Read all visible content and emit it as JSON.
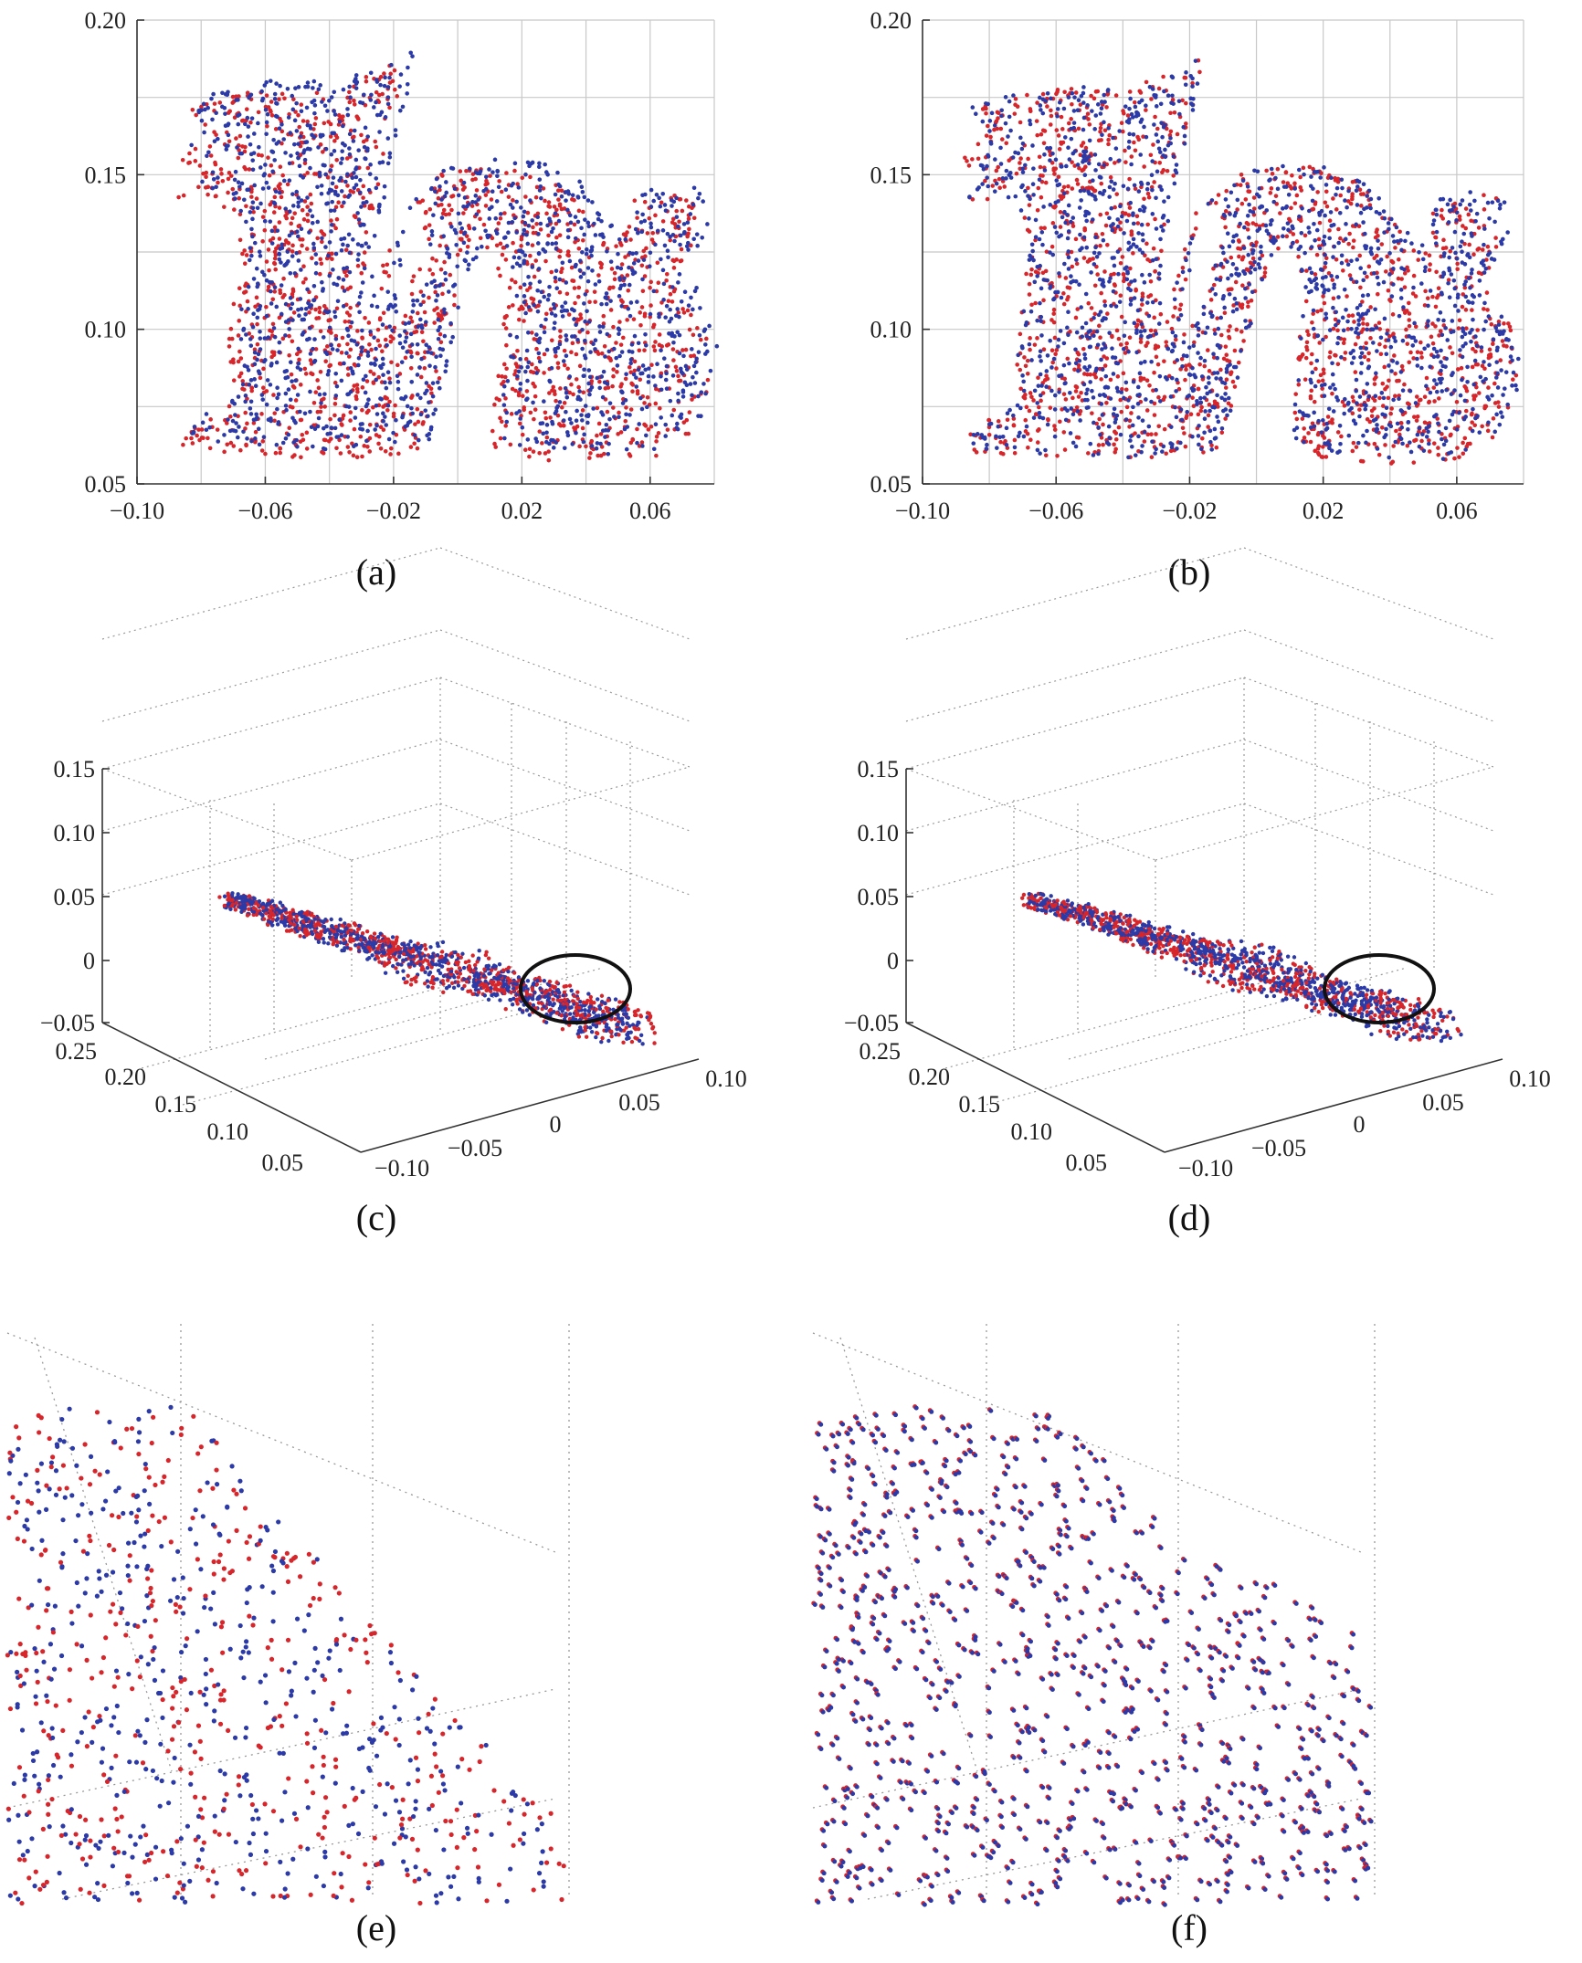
{
  "colors": {
    "red": "#d7262b",
    "blue": "#2b3aa6",
    "axis": "#333333",
    "grid": "#c8c8c8"
  },
  "chart_data": [
    {
      "panel": "(a)",
      "type": "scatter",
      "grid": true,
      "xlim": [
        -0.1,
        0.08
      ],
      "ylim": [
        0.05,
        0.2
      ],
      "xticks": [
        "−0.10",
        "−0.06",
        "−0.02",
        "0.02",
        "0.06"
      ],
      "xtick_values": [
        -0.1,
        -0.06,
        -0.02,
        0.02,
        0.06
      ],
      "yticks": [
        "0.05",
        "0.10",
        "0.15",
        "0.20"
      ],
      "ytick_values": [
        0.05,
        0.1,
        0.15,
        0.2
      ],
      "series_colors": [
        "red",
        "blue"
      ],
      "shape": "dragon point cloud (side view)",
      "blue_offset": [
        0.003,
        0.003
      ]
    },
    {
      "panel": "(b)",
      "type": "scatter",
      "grid": true,
      "xlim": [
        -0.1,
        0.08
      ],
      "ylim": [
        0.05,
        0.2
      ],
      "xticks": [
        "−0.10",
        "−0.06",
        "−0.02",
        "0.02",
        "0.06"
      ],
      "xtick_values": [
        -0.1,
        -0.06,
        -0.02,
        0.02,
        0.06
      ],
      "yticks": [
        "0.05",
        "0.10",
        "0.15",
        "0.20"
      ],
      "ytick_values": [
        0.05,
        0.1,
        0.15,
        0.2
      ],
      "series_colors": [
        "red",
        "blue"
      ],
      "shape": "dragon point cloud (side view)",
      "blue_offset": [
        0.0005,
        0.0005
      ]
    },
    {
      "panel": "(c)",
      "type": "scatter3d",
      "grid": true,
      "zticks": [
        "0.15",
        "0.10",
        "0.05",
        "0",
        "−0.05"
      ],
      "yticks": [
        "0.25",
        "0.20",
        "0.15",
        "0.10",
        "0.05"
      ],
      "xticks": [
        "−0.10",
        "−0.05",
        "0",
        "0.05",
        "0.10"
      ],
      "series_colors": [
        "red",
        "blue"
      ],
      "annotation": "circle"
    },
    {
      "panel": "(d)",
      "type": "scatter3d",
      "grid": true,
      "zticks": [
        "0.15",
        "0.10",
        "0.05",
        "0",
        "−0.05"
      ],
      "yticks": [
        "0.25",
        "0.20",
        "0.15",
        "0.10",
        "0.05"
      ],
      "xticks": [
        "−0.10",
        "−0.05",
        "0",
        "0.05",
        "0.10"
      ],
      "series_colors": [
        "red",
        "blue"
      ],
      "annotation": "circle"
    },
    {
      "panel": "(e)",
      "type": "scatter",
      "grid": true,
      "series_colors": [
        "red",
        "blue"
      ],
      "zoom": "zoomed view of circled region"
    },
    {
      "panel": "(f)",
      "type": "scatter",
      "grid": true,
      "series_colors": [
        "red",
        "blue"
      ],
      "zoom": "zoomed view of circled region"
    }
  ]
}
